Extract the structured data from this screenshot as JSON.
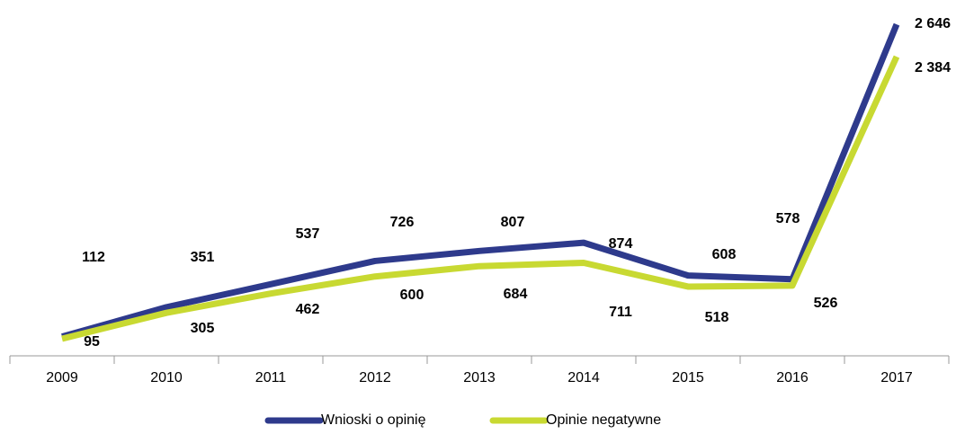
{
  "chart_data": {
    "type": "line",
    "categories": [
      "2009",
      "2010",
      "2011",
      "2012",
      "2013",
      "2014",
      "2015",
      "2016",
      "2017"
    ],
    "series": [
      {
        "name": "Wnioski o opinię",
        "color": "#2e3a8c",
        "values": [
          112,
          351,
          537,
          726,
          807,
          874,
          608,
          578,
          2646
        ],
        "value_labels": [
          "112",
          "351",
          "537",
          "726",
          "807",
          "874",
          "608",
          "578",
          "2 646"
        ]
      },
      {
        "name": "Opinie negatywne",
        "color": "#c8d932",
        "values": [
          95,
          305,
          462,
          600,
          684,
          711,
          518,
          526,
          2384
        ],
        "value_labels": [
          "95",
          "305",
          "462",
          "600",
          "684",
          "711",
          "518",
          "526",
          "2 384"
        ]
      }
    ],
    "ylim": [
      0,
      2800
    ],
    "legend": "bottom"
  }
}
